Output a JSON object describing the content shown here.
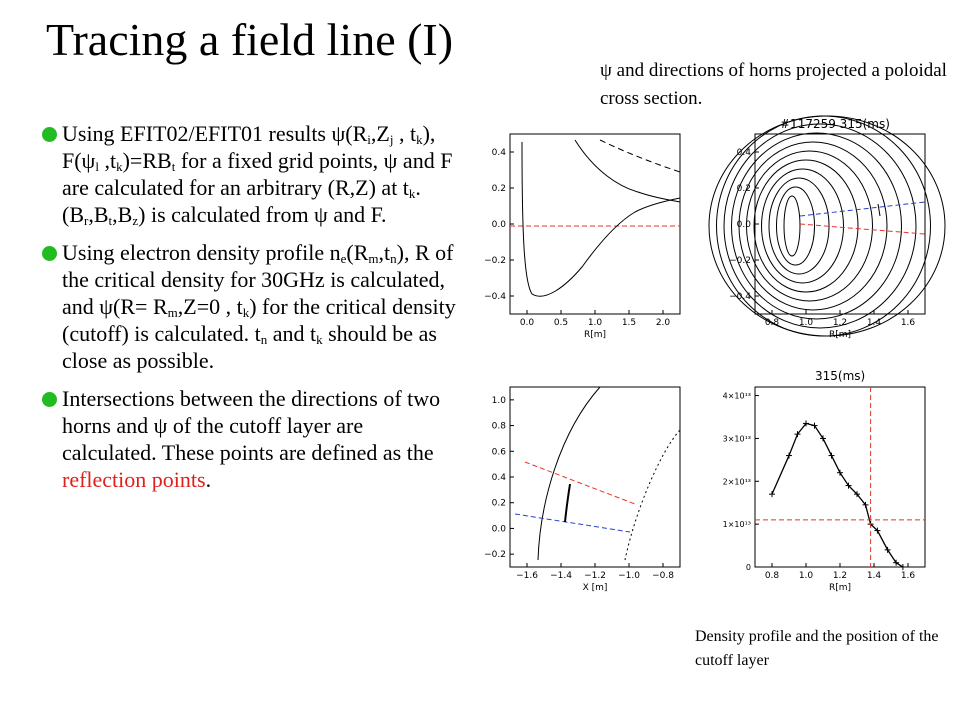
{
  "title": "Tracing a field line (I)",
  "caption_top": "ψ and directions of horns projected a poloidal cross section.",
  "caption_bottom": "Density profile and the position of the cutoff layer",
  "bullets": [
    "Using EFIT02/EFIT01 results ψ(Ri,Zj , tk),  F(ψl ,tk)=RBt for a fixed grid points, ψ and F are calculated for an arbitrary (R,Z) at tk.(Br,Bt,Bz) is calculated from ψ and F.",
    "Using electron density profile ne(Rm,tn), R of the critical density for 30GHz is calculated, and ψ(R= Rm,Z=0 , tk) for the critical density (cutoff) is calculated. tn and  tk should be as close as possible.",
    "Intersections between the directions of two horns and ψ of the cutoff layer are calculated. These points are defined as the reflection points."
  ],
  "highlight_text": "reflection points",
  "colors": {
    "bullet": "#22bb22",
    "highlight": "#e0201b",
    "red_line": "#e8322b",
    "blue_line": "#2a3fcc"
  },
  "panels": {
    "top_left": {
      "xlabel": "R[m]",
      "x_ticks": [
        "0.0",
        "0.5",
        "1.0",
        "1.5",
        "2.0"
      ],
      "y_ticks": [
        "0.4",
        "0.2",
        "0.0",
        "−0.2",
        "−0.4"
      ]
    },
    "top_right": {
      "title": "#117259  315(ms)",
      "xlabel": "R[m]",
      "x_ticks": [
        "0.8",
        "1.0",
        "1.2",
        "1.4",
        "1.6"
      ],
      "y_ticks": [
        "0.4",
        "0.2",
        "0.0",
        "−0.2",
        "−0.4"
      ]
    },
    "bottom_left": {
      "xlabel": "X [m]",
      "x_ticks": [
        "−1.6",
        "−1.4",
        "−1.2",
        "−1.0",
        "−0.8"
      ],
      "y_ticks": [
        "1.0",
        "0.8",
        "0.6",
        "0.4",
        "0.2",
        "0.0",
        "−0.2"
      ]
    },
    "bottom_right": {
      "title": "315(ms)",
      "xlabel": "R[m]",
      "x_ticks": [
        "0.8",
        "1.0",
        "1.2",
        "1.4",
        "1.6"
      ],
      "y_ticks": [
        "4×10¹³",
        "3×10¹³",
        "2×10¹³",
        "1×10¹³",
        "0"
      ]
    }
  },
  "chart_data": {
    "type": "line",
    "title": "315(ms)",
    "xlabel": "R[m]",
    "ylabel": "",
    "xlim": [
      0.7,
      1.7
    ],
    "ylim": [
      0,
      42000000000000.0
    ],
    "series": [
      {
        "x": [
          0.8,
          0.9,
          0.95,
          1.0,
          1.05,
          1.1,
          1.15,
          1.2,
          1.25,
          1.3,
          1.35,
          1.38,
          1.42,
          1.48,
          1.53,
          1.57
        ],
        "values": [
          17000000000000.0,
          26000000000000.0,
          31000000000000.0,
          33500000000000.0,
          33000000000000.0,
          30000000000000.0,
          26000000000000.0,
          22000000000000.0,
          19000000000000.0,
          17000000000000.0,
          14500000000000.0,
          10000000000000.0,
          8500000000000.0,
          4000000000000.0,
          1000000000000.0,
          0.0
        ]
      }
    ],
    "cutoff_R": 1.38,
    "cutoff_density": 11000000000000.0
  }
}
